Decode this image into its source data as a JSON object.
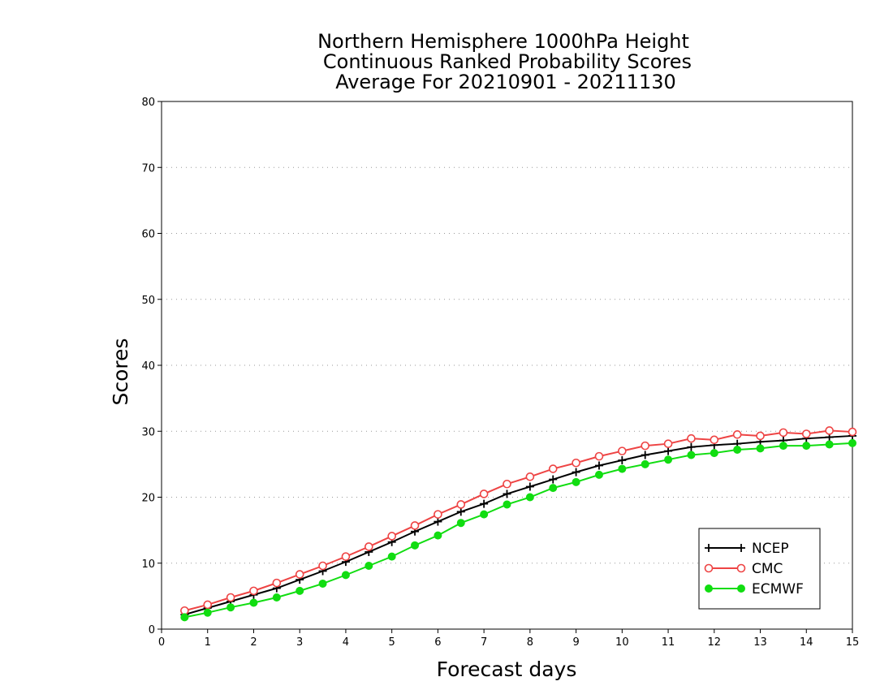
{
  "chart_data": {
    "type": "line",
    "title": [
      "Northern Hemisphere 1000hPa Height",
      "Continuous Ranked Probability Scores",
      "Average For 20210901 - 20211130"
    ],
    "xlabel": "Forecast days",
    "ylabel": "Scores",
    "xlim": [
      0,
      15
    ],
    "ylim": [
      0,
      80
    ],
    "x_ticks": [
      0,
      1,
      2,
      3,
      4,
      5,
      6,
      7,
      8,
      9,
      10,
      11,
      12,
      13,
      14,
      15
    ],
    "y_ticks": [
      0,
      10,
      20,
      30,
      40,
      50,
      60,
      70,
      80
    ],
    "grid": "horizontal dotted",
    "legend_position": "bottom-right",
    "x": [
      0.5,
      1,
      1.5,
      2,
      2.5,
      3,
      3.5,
      4,
      4.5,
      5,
      5.5,
      6,
      6.5,
      7,
      7.5,
      8,
      8.5,
      9,
      9.5,
      10,
      10.5,
      11,
      11.5,
      12,
      12.5,
      13,
      13.5,
      14,
      14.5,
      15
    ],
    "series": [
      {
        "name": "NCEP",
        "color": "#000000",
        "marker": "plus",
        "values": [
          2.2,
          3.2,
          4.2,
          5.2,
          6.2,
          7.5,
          8.8,
          10.2,
          11.7,
          13.2,
          14.8,
          16.3,
          17.8,
          19.0,
          20.5,
          21.6,
          22.7,
          23.8,
          24.8,
          25.6,
          26.4,
          27.0,
          27.6,
          27.9,
          28.1,
          28.4,
          28.6,
          28.9,
          29.1,
          29.3
        ]
      },
      {
        "name": "CMC",
        "color": "#ee4444",
        "marker": "open-circle",
        "values": [
          2.8,
          3.7,
          4.8,
          5.8,
          7.0,
          8.3,
          9.6,
          11.0,
          12.5,
          14.1,
          15.7,
          17.4,
          18.9,
          20.5,
          22.0,
          23.1,
          24.3,
          25.2,
          26.2,
          27.0,
          27.8,
          28.1,
          28.9,
          28.7,
          29.5,
          29.3,
          29.8,
          29.6,
          30.1,
          29.9
        ]
      },
      {
        "name": "ECMWF",
        "color": "#11dd11",
        "marker": "filled-circle",
        "values": [
          1.8,
          2.5,
          3.3,
          4.0,
          4.8,
          5.8,
          6.9,
          8.2,
          9.6,
          11.0,
          12.7,
          14.2,
          16.1,
          17.4,
          18.9,
          20.0,
          21.4,
          22.3,
          23.4,
          24.3,
          25.0,
          25.7,
          26.4,
          26.7,
          27.2,
          27.4,
          27.8,
          27.8,
          28.0,
          28.2
        ]
      }
    ]
  }
}
